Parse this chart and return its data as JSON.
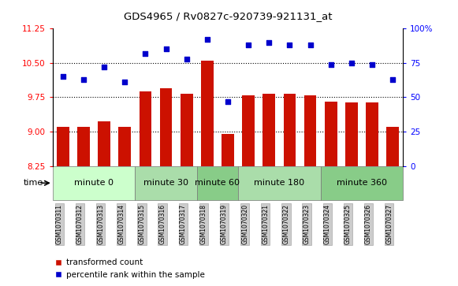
{
  "title": "GDS4965 / Rv0827c-920739-921131_at",
  "samples": [
    "GSM1070311",
    "GSM1070312",
    "GSM1070313",
    "GSM1070314",
    "GSM1070315",
    "GSM1070316",
    "GSM1070317",
    "GSM1070318",
    "GSM1070319",
    "GSM1070320",
    "GSM1070321",
    "GSM1070322",
    "GSM1070323",
    "GSM1070324",
    "GSM1070325",
    "GSM1070326",
    "GSM1070327"
  ],
  "bar_values": [
    9.1,
    9.1,
    9.22,
    9.1,
    9.88,
    9.95,
    9.83,
    10.55,
    8.95,
    9.8,
    9.83,
    9.83,
    9.8,
    9.65,
    9.64,
    9.63,
    9.1
  ],
  "scatter_values": [
    65,
    63,
    72,
    61,
    82,
    85,
    78,
    92,
    47,
    88,
    90,
    88,
    88,
    74,
    75,
    74,
    63
  ],
  "bar_color": "#cc1100",
  "scatter_color": "#0000cc",
  "ylim_left": [
    8.25,
    11.25
  ],
  "ylim_right": [
    0,
    100
  ],
  "yticks_left": [
    8.25,
    9.0,
    9.75,
    10.5,
    11.25
  ],
  "yticks_right": [
    0,
    25,
    50,
    75,
    100
  ],
  "hlines": [
    9.0,
    9.75,
    10.5
  ],
  "groups": [
    {
      "label": "minute 0",
      "start": 0,
      "end": 4,
      "color": "#ccffcc"
    },
    {
      "label": "minute 30",
      "start": 4,
      "end": 7,
      "color": "#99ee99"
    },
    {
      "label": "minute 60",
      "start": 7,
      "end": 9,
      "color": "#66dd66"
    },
    {
      "label": "minute 180",
      "start": 9,
      "end": 13,
      "color": "#99ee99"
    },
    {
      "label": "minute 360",
      "start": 13,
      "end": 17,
      "color": "#66dd66"
    }
  ],
  "legend_bar": "transformed count",
  "legend_scatter": "percentile rank within the sample",
  "bar_bottom": 8.25,
  "alt_colors": [
    "#ccffcc",
    "#aaddaa",
    "#88cc88",
    "#aaddaa",
    "#88cc88"
  ]
}
